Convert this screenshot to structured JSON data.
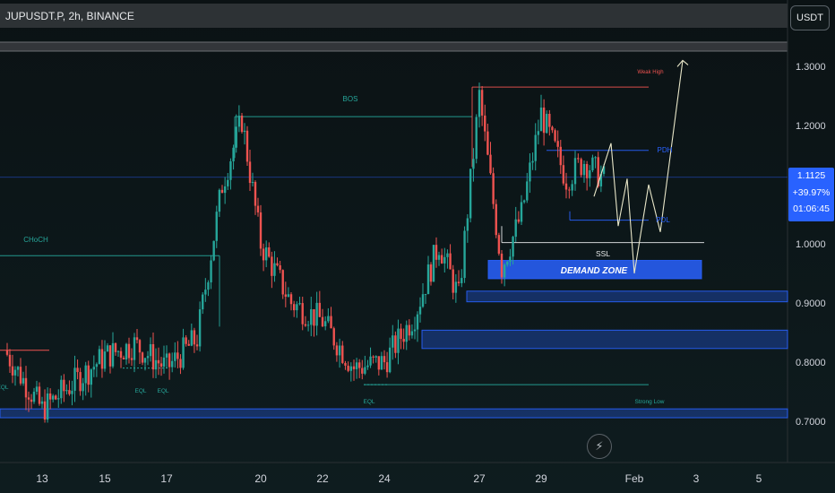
{
  "header": {
    "symbol": "JUPUSDT.P, 2h, BINANCE"
  },
  "currency_button": "USDT",
  "last_price": {
    "price": "1.1125",
    "change": "+39.97%",
    "countdown": "01:06:45"
  },
  "colors": {
    "background_top": "#0b1214",
    "background_bottom": "#0e1c1f",
    "up_candle": "#26a69a",
    "down_candle": "#ef5350",
    "demand_zone": "#2962ff",
    "structure_line": "#26a69a",
    "weak_high_line": "#ef5350",
    "liquidity_line": "#2962ff",
    "projection": "#e8e6c8"
  },
  "icons": {
    "flash": "lightning-icon"
  },
  "chart_data": {
    "type": "candlestick",
    "title": "JUPUSDT.P, 2h, BINANCE",
    "x_tick_labels": [
      "13",
      "15",
      "17",
      "20",
      "22",
      "24",
      "27",
      "29",
      "Feb",
      "3",
      "5"
    ],
    "y_tick_labels": [
      "1.3000",
      "1.2000",
      "1.1000",
      "1.0000",
      "0.9000",
      "0.8000",
      "0.7000"
    ],
    "ylim": [
      0.66,
      1.42
    ],
    "grid": false,
    "series_summary": [
      {
        "date": "12",
        "price": 0.82
      },
      {
        "date": "13",
        "price": 0.72
      },
      {
        "date": "15",
        "price": 0.81
      },
      {
        "date": "16",
        "price": 0.83
      },
      {
        "date": "17",
        "price": 0.79
      },
      {
        "date": "18",
        "price": 0.84
      },
      {
        "date": "19",
        "price": 1.1
      },
      {
        "date": "19",
        "price": 1.21
      },
      {
        "date": "20",
        "price": 1.0
      },
      {
        "date": "21",
        "price": 0.9
      },
      {
        "date": "22",
        "price": 0.87
      },
      {
        "date": "23",
        "price": 0.79
      },
      {
        "date": "24",
        "price": 0.8
      },
      {
        "date": "25",
        "price": 0.88
      },
      {
        "date": "26",
        "price": 1.0
      },
      {
        "date": "26",
        "price": 0.91
      },
      {
        "date": "27",
        "price": 1.25
      },
      {
        "date": "28",
        "price": 0.96
      },
      {
        "date": "28",
        "price": 1.05
      },
      {
        "date": "29",
        "price": 1.22
      },
      {
        "date": "30",
        "price": 1.11
      },
      {
        "date": "31",
        "price": 1.14
      },
      {
        "date": "31",
        "price": 1.11
      }
    ],
    "annotations": {
      "labels": [
        "BOS",
        "CHoCH",
        "Weak High",
        "PDH",
        "PDL",
        "SSL",
        "DEMAND ZONE",
        "EQL",
        "EQL",
        "EQL",
        "EQL",
        "Strong Low"
      ],
      "levels": [
        {
          "label": "BOS",
          "price": 1.215
        },
        {
          "label": "CHoCH",
          "price": 0.98
        },
        {
          "label": "Weak High",
          "price": 1.265
        },
        {
          "label": "PDH",
          "price": 1.158
        },
        {
          "label": "PDL",
          "price": 1.04
        },
        {
          "label": "SSL",
          "price": 1.002
        },
        {
          "label": "Strong Low",
          "price": 0.762
        }
      ],
      "zones": [
        {
          "label": "DEMAND ZONE",
          "from": 0.941,
          "to": 0.972
        },
        {
          "from": 0.902,
          "to": 0.92
        },
        {
          "from": 0.823,
          "to": 0.854
        },
        {
          "from": 0.706,
          "to": 0.721
        }
      ],
      "projection_path": [
        1.08,
        1.17,
        1.03,
        1.11,
        0.95,
        1.1,
        1.02,
        1.31
      ]
    }
  }
}
